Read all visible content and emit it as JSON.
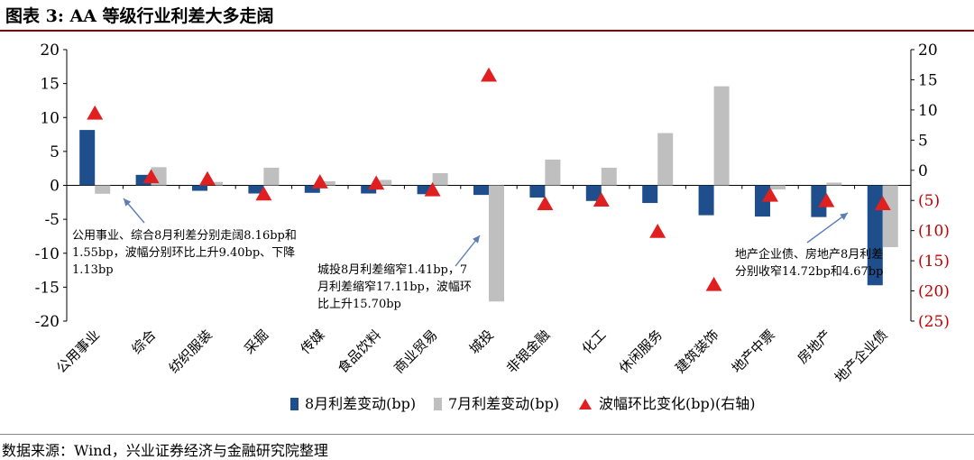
{
  "figure_title": "图表 3:  AA 等级行业利差大多走阔",
  "source_note": "数据来源：Wind，兴业证券经济与金融研究院整理",
  "colors": {
    "aug": "#1f4e8c",
    "jul": "#bfbfbf",
    "marker": "#e02020",
    "neg_tick": "#c00000"
  },
  "chart_data": {
    "type": "bar",
    "categories": [
      "公用事业",
      "综合",
      "纺织服装",
      "采掘",
      "传媒",
      "食品饮料",
      "商业贸易",
      "城投",
      "非银金融",
      "化工",
      "休闲服务",
      "建筑装饰",
      "地产中票",
      "房地产",
      "地产企业债"
    ],
    "series": [
      {
        "name": "8月利差变动(bp)",
        "kind": "bar",
        "axis": "left",
        "values": [
          8.16,
          1.55,
          -0.8,
          -1.2,
          -1.1,
          -1.2,
          -1.3,
          -1.41,
          -1.8,
          -2.3,
          -2.6,
          -4.4,
          -4.6,
          -4.67,
          -14.72
        ]
      },
      {
        "name": "7月利差变动(bp)",
        "kind": "bar",
        "axis": "left",
        "values": [
          -1.24,
          2.68,
          0.5,
          2.6,
          0.6,
          0.8,
          1.8,
          -17.11,
          3.8,
          2.6,
          7.7,
          14.6,
          -0.6,
          0.4,
          -9.1
        ]
      },
      {
        "name": "波幅环比变化(bp)(右轴)",
        "kind": "marker",
        "axis": "right",
        "values": [
          9.4,
          -1.13,
          -1.5,
          -4.0,
          -2.0,
          -2.2,
          -3.3,
          15.7,
          -5.6,
          -5.0,
          -10.2,
          -19.0,
          -4.2,
          -5.1,
          -5.6
        ]
      }
    ],
    "left_axis": {
      "min": -20,
      "max": 20,
      "step": 5,
      "tick_labels": [
        "20",
        "15",
        "10",
        "5",
        "0",
        "-5",
        "-10",
        "-15",
        "-20"
      ]
    },
    "right_axis": {
      "min": -25,
      "max": 20,
      "step": 5,
      "tick_labels": [
        "20",
        "15",
        "10",
        "5",
        "0",
        "(5)",
        "(10)",
        "(15)",
        "(20)",
        "(25)"
      ]
    },
    "legend": [
      "8月利差变动(bp)",
      "7月利差变动(bp)",
      "波幅环比变化(bp)(右轴)"
    ],
    "legend_position": "bottom",
    "annotations": [
      {
        "lines": [
          "公用事业、综合8月利差分别走阔8.16bp和",
          "1.55bp，波幅分别环比上升9.40bp、下降",
          "1.13bp"
        ]
      },
      {
        "lines": [
          "城投8月利差缩窄1.41bp，7",
          "月利差缩窄17.11bp，波幅环",
          "比上升15.70bp"
        ]
      },
      {
        "lines": [
          "地产企业债、房地产8月利差",
          "分别收窄14.72bp和4.67bp"
        ]
      }
    ]
  }
}
